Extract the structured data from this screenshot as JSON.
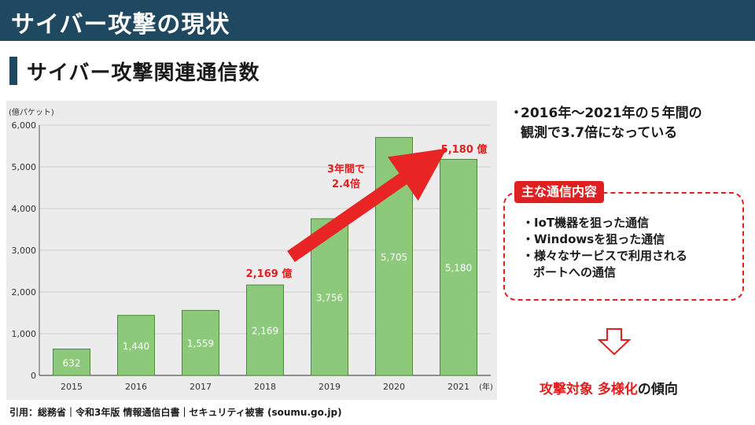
{
  "page": {
    "title": "サイバー攻撃の現状",
    "subtitle": "サイバー攻撃関連通信数"
  },
  "colors": {
    "header_bg": "#1f4861",
    "accent_red": "#e02020",
    "bar_fill": "#8cc97a",
    "bar_border": "#4a8a3a",
    "chart_bg": "#ececec"
  },
  "chart_data": {
    "type": "bar",
    "categories": [
      "2015",
      "2016",
      "2017",
      "2018",
      "2019",
      "2020",
      "2021"
    ],
    "values": [
      632,
      1440,
      1559,
      2169,
      3756,
      5705,
      5180
    ],
    "value_labels": [
      "632",
      "1,440",
      "1,559",
      "2,169",
      "3,756",
      "5,705",
      "5,180"
    ],
    "ylabel": "(億パケット)",
    "xunit": "(年)",
    "ylim": [
      0,
      6000
    ],
    "yticks": [
      0,
      1000,
      2000,
      3000,
      4000,
      5000,
      6000
    ],
    "ytick_labels": [
      "0",
      "1,000",
      "2,000",
      "3,000",
      "4,000",
      "5,000",
      "6,000"
    ],
    "grid": true,
    "annotations": {
      "value_2018": "2,169 億",
      "value_2021": "5,180 億",
      "growth_line1": "3年間で",
      "growth_line2": "2.4倍"
    }
  },
  "bullet": {
    "dot": "・",
    "line1": "2016年～2021年の５年間の",
    "line2": "観測で3.7倍になっている"
  },
  "box": {
    "label": "主な通信内容",
    "items": [
      "・IoT機器を狙った通信",
      "・Windowsを狙った通信",
      "・様々なサービスで利用される"
    ],
    "item_cont": "ポートへの通信"
  },
  "conclusion": {
    "part1": "攻撃対象",
    "part2": "多様化",
    "part3": "の傾向"
  },
  "citation": "引用：総務省｜令和3年版 情報通信白書｜セキュリティ被害 (soumu.go.jp)"
}
